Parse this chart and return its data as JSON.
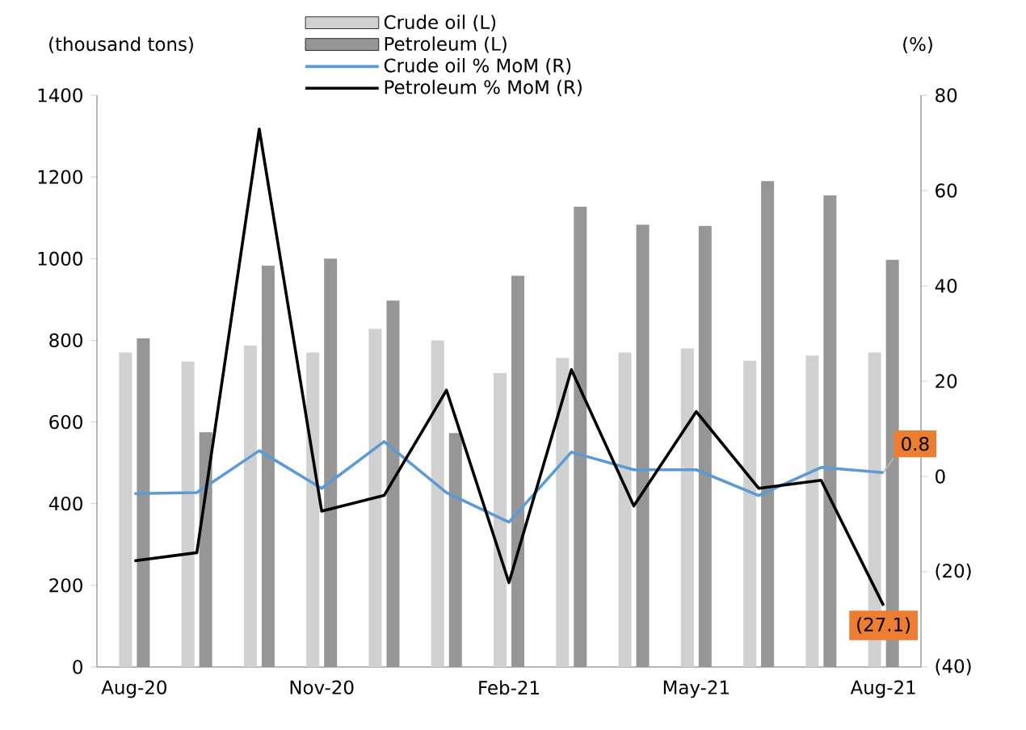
{
  "chart_data": {
    "type": "bar",
    "ylabel": "(thousand tons)",
    "y2label": "(%)",
    "categories": [
      "Aug-20",
      null,
      null,
      "Nov-20",
      null,
      null,
      "Feb-21",
      null,
      null,
      "May-21",
      null,
      null,
      "Aug-21"
    ],
    "series": [
      {
        "name": "Crude oil (L)",
        "color": "#d0d0d0",
        "values": [
          770,
          748,
          787,
          770,
          828,
          800,
          720,
          757,
          770,
          780,
          750,
          763,
          770
        ]
      },
      {
        "name": "Petroleum (L)",
        "color": "#969696",
        "values": [
          805,
          575,
          983,
          1000,
          897,
          573,
          958,
          1127,
          1083,
          1080,
          1190,
          1155,
          997
        ]
      },
      {
        "name": "Crude oil % MoM (R)",
        "type": "line",
        "axis": "y2",
        "color": "#5b9bd5",
        "values": [
          -3.6,
          -3.4,
          5.4,
          -2.5,
          7.3,
          -3.4,
          -9.6,
          5.1,
          1.4,
          1.4,
          -4.0,
          1.9,
          0.8
        ],
        "value_labels": [
          null,
          null,
          null,
          null,
          null,
          null,
          null,
          null,
          null,
          null,
          null,
          null,
          "0.8"
        ]
      },
      {
        "name": "Petroleum % MoM (R)",
        "type": "line",
        "axis": "y2",
        "color": "#000000",
        "values": [
          -17.7,
          -16,
          72.9,
          -7.3,
          -4,
          18.1,
          -22.3,
          22.4,
          -6.2,
          13.6,
          -2.5,
          -0.8,
          -27.1
        ],
        "value_labels": [
          null,
          null,
          null,
          null,
          null,
          null,
          null,
          null,
          null,
          null,
          null,
          null,
          "(27.1)"
        ]
      }
    ],
    "ylim": [
      0,
      1400
    ],
    "yticks": [
      0,
      200,
      400,
      600,
      800,
      1000,
      1200,
      1400
    ],
    "y2lim": [
      -40,
      80
    ],
    "y2ticks": [
      {
        "value": -40,
        "label": "(40)"
      },
      {
        "value": -20,
        "label": "(20)"
      },
      0,
      20,
      40,
      60,
      80
    ],
    "legend": "top"
  }
}
